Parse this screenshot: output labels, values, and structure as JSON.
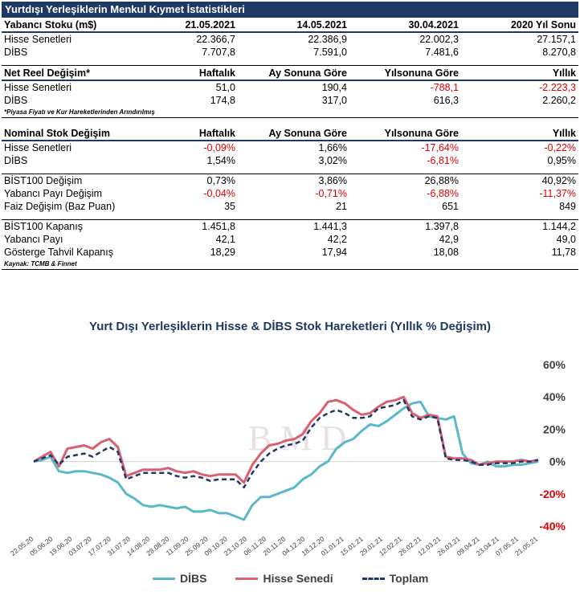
{
  "title": "Yurtdışı Yerleşiklerin Menkul Kıymet İstatistikleri",
  "colors": {
    "header_band": "#1f3864",
    "negative": "#e00000",
    "dibs": "#5bb8c8",
    "hisse": "#d9606e",
    "toplam": "#1f3864"
  },
  "stock": {
    "headers": [
      "Yabancı Stoku (m$)",
      "21.05.2021",
      "14.05.2021",
      "30.04.2021",
      "2020 Yıl Sonu"
    ],
    "rows": [
      [
        "Hisse Senetleri",
        "22.366,7",
        "22.386,9",
        "22.002,3",
        "27.157,1"
      ],
      [
        "DİBS",
        "7.707,8",
        "7.591,0",
        "7.481,6",
        "8.270,8"
      ]
    ]
  },
  "net_real": {
    "headers": [
      "Net Reel Değişim*",
      "Haftalık",
      "Ay Sonuna Göre",
      "Yılsonuna Göre",
      "Yıllık"
    ],
    "rows": [
      [
        "Hisse Senetleri",
        "51,0",
        "190,4",
        "-788,1",
        "-2.223,3"
      ],
      [
        "DİBS",
        "174,8",
        "317,0",
        "616,3",
        "2.260,2"
      ]
    ],
    "note": "*Piyasa Fiyatı ve Kur Hareketlerinden Arındırılmış"
  },
  "nominal": {
    "headers": [
      "Nominal Stok Değişim",
      "Haftalık",
      "Ay Sonuna Göre",
      "Yılsonuna Göre",
      "Yıllık"
    ],
    "rows": [
      [
        "Hisse Senetleri",
        "-0,09%",
        "1,66%",
        "-17,64%",
        "-0,22%"
      ],
      [
        "DİBS",
        "1,54%",
        "3,02%",
        "-6,81%",
        "0,95%"
      ]
    ]
  },
  "bist_changes": {
    "rows": [
      [
        "BİST100 Değişim",
        "0,73%",
        "3,86%",
        "26,88%",
        "40,92%"
      ],
      [
        "Yabancı Payı Değişim",
        "-0,04%",
        "-0,71%",
        "-6,88%",
        "-11,37%"
      ],
      [
        "Faiz Değişim (Baz Puan)",
        "35",
        "21",
        "651",
        "849"
      ]
    ]
  },
  "closing": {
    "rows": [
      [
        "BİST100 Kapanış",
        "1.451,8",
        "1.441,3",
        "1.397,8",
        "1.144,2"
      ],
      [
        "Yabancı Payı",
        "42,1",
        "42,2",
        "42,9",
        "49,0"
      ],
      [
        "Gösterge Tahvil Kapanış",
        "18,29",
        "17,94",
        "18,08",
        "11,78"
      ]
    ]
  },
  "source": "Kaynak: TCMB & Finnet",
  "chart_data": {
    "type": "line",
    "title": "Yurt Dışı Yerleşiklerin Hisse & DİBS Stok Hareketleri (Yıllık % Değişim)",
    "ylim": [
      -40,
      60
    ],
    "yticks": [
      {
        "value": 60,
        "label": "60%"
      },
      {
        "value": 40,
        "label": "40%"
      },
      {
        "value": 20,
        "label": "20%"
      },
      {
        "value": 0,
        "label": "0%"
      },
      {
        "value": -20,
        "label": "-20%"
      },
      {
        "value": -40,
        "label": "-40%"
      }
    ],
    "x_tick_labels": [
      "22.05.20",
      "05.06.20",
      "19.06.20",
      "03.07.20",
      "17.07.20",
      "31.07.20",
      "14.08.20",
      "28.08.20",
      "11.09.20",
      "25.09.20",
      "09.10.20",
      "23.10.20",
      "06.11.20",
      "20.11.20",
      "04.12.20",
      "18.12.20",
      "01.01.21",
      "15.01.21",
      "29.01.21",
      "12.02.21",
      "26.02.21",
      "12.03.21",
      "26.03.21",
      "09.04.21",
      "23.04.21",
      "07.05.21",
      "21.05.21"
    ],
    "series": [
      {
        "name": "DİBS",
        "style": "solid",
        "values": [
          0,
          1,
          3,
          -6,
          -7,
          -6,
          -6,
          -7,
          -8,
          -10,
          -13,
          -20,
          -23,
          -27,
          -28,
          -27,
          -28,
          -29,
          -28,
          -31,
          -31,
          -30,
          -32,
          -32,
          -34,
          -36,
          -27,
          -22,
          -22,
          -20,
          -18,
          -16,
          -11,
          -8,
          -3,
          0,
          8,
          12,
          14,
          19,
          23,
          22,
          25,
          29,
          33,
          36,
          37,
          28,
          27,
          26,
          28,
          5,
          -1,
          -2,
          0,
          -3,
          -3,
          -2,
          -2,
          -1,
          0
        ]
      },
      {
        "name": "Hisse Senedi",
        "style": "solid",
        "values": [
          0,
          3,
          6,
          -3,
          8,
          9,
          10,
          8,
          12,
          14,
          9,
          -9,
          -7,
          -5,
          -5,
          -5,
          -4,
          -6,
          -7,
          -6,
          -8,
          -9,
          -8,
          -8,
          -8,
          -13,
          -2,
          5,
          10,
          11,
          13,
          14,
          17,
          25,
          30,
          37,
          38,
          36,
          32,
          29,
          30,
          34,
          37,
          38,
          40,
          30,
          27,
          29,
          28,
          3,
          2,
          2,
          1,
          -2,
          -1,
          0,
          0,
          0,
          1,
          0,
          1
        ]
      },
      {
        "name": "Toplam",
        "style": "dashed",
        "values": [
          0,
          2,
          4,
          -2,
          3,
          4,
          5,
          3,
          6,
          9,
          6,
          -11,
          -9,
          -7,
          -7,
          -7,
          -7,
          -9,
          -10,
          -9,
          -10,
          -12,
          -11,
          -11,
          -11,
          -16,
          -7,
          0,
          5,
          8,
          10,
          11,
          13,
          21,
          27,
          30,
          32,
          30,
          27,
          27,
          28,
          33,
          34,
          35,
          38,
          28,
          26,
          28,
          27,
          2,
          1,
          1,
          0,
          -2,
          -2,
          -1,
          -1,
          -1,
          0,
          0,
          1
        ]
      }
    ],
    "legend": [
      "DİBS",
      "Hisse Senedi",
      "Toplam"
    ]
  }
}
